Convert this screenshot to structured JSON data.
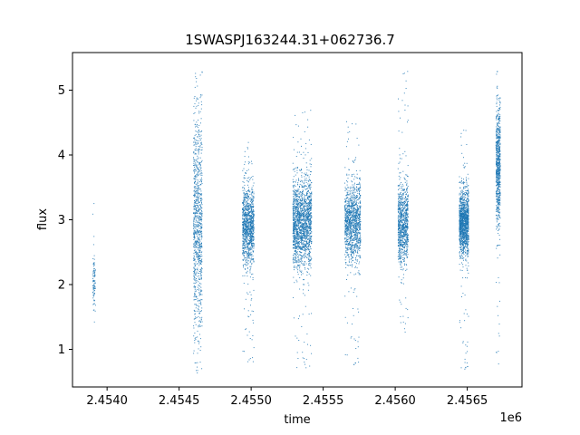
{
  "chart_data": {
    "type": "scatter",
    "title": "1SWASPJ163244.31+062736.7",
    "xlabel": "time",
    "ylabel": "flux",
    "x_offset_label": "1e6",
    "xlim": [
      2453760,
      2456880
    ],
    "ylim": [
      0.42,
      5.58
    ],
    "x_ticks": [
      2.454,
      2.4545,
      2.455,
      2.4555,
      2.456,
      2.4565
    ],
    "x_tick_labels": [
      "2.4540",
      "2.4545",
      "2.4550",
      "2.4555",
      "2.4560",
      "2.4565"
    ],
    "y_ticks": [
      1,
      2,
      3,
      4,
      5
    ],
    "y_tick_labels": [
      "1",
      "2",
      "3",
      "4",
      "5"
    ],
    "grid": false,
    "marker_color": "#1f77b4",
    "series": [
      {
        "clusters": [
          {
            "x_start": 2453900,
            "x_end": 2453920,
            "y_center": 2.0,
            "y_spread": 0.22,
            "y_min": 1.4,
            "y_max": 3.4,
            "count": 90
          },
          {
            "x_start": 2454600,
            "x_end": 2454660,
            "y_center": 2.9,
            "y_spread": 0.85,
            "y_min": 0.62,
            "y_max": 5.35,
            "count": 900
          },
          {
            "x_start": 2454940,
            "x_end": 2455020,
            "y_center": 2.9,
            "y_spread": 0.3,
            "y_min": 0.8,
            "y_max": 4.2,
            "count": 1100
          },
          {
            "x_start": 2455290,
            "x_end": 2455420,
            "y_center": 2.95,
            "y_spread": 0.33,
            "y_min": 0.65,
            "y_max": 4.7,
            "count": 1700
          },
          {
            "x_start": 2455650,
            "x_end": 2455760,
            "y_center": 2.95,
            "y_spread": 0.3,
            "y_min": 0.72,
            "y_max": 4.6,
            "count": 1200
          },
          {
            "x_start": 2456020,
            "x_end": 2456090,
            "y_center": 2.95,
            "y_spread": 0.3,
            "y_min": 1.2,
            "y_max": 5.3,
            "count": 900
          },
          {
            "x_start": 2456445,
            "x_end": 2456510,
            "y_center": 2.95,
            "y_spread": 0.25,
            "y_min": 0.65,
            "y_max": 4.5,
            "count": 1300
          },
          {
            "x_start": 2456700,
            "x_end": 2456730,
            "y_center": 3.8,
            "y_spread": 0.45,
            "y_min": 0.72,
            "y_max": 5.35,
            "count": 700
          }
        ]
      }
    ]
  }
}
